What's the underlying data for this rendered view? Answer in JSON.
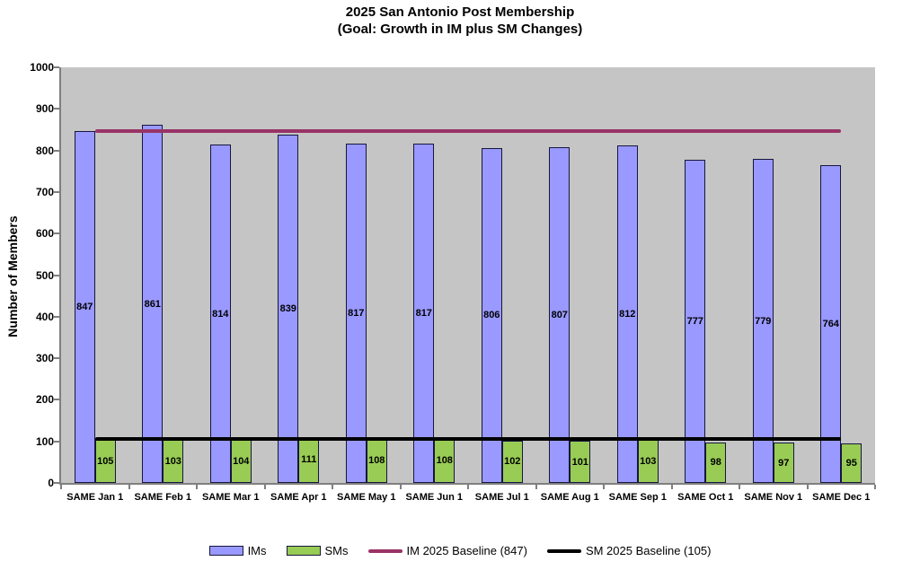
{
  "chart_data": {
    "type": "bar",
    "title": "2025 San Antonio Post Membership",
    "subtitle": "(Goal: Growth in IM plus SM Changes)",
    "ylabel": "Number of Members",
    "xlabel": "",
    "ylim": [
      0,
      1000
    ],
    "ytick_step": 100,
    "grid": false,
    "legend_position": "bottom",
    "plot_bg_color": "#C5C5C5",
    "axis_color": "#7f7f7f",
    "categories": [
      "SAME Jan 1",
      "SAME Feb 1",
      "SAME Mar 1",
      "SAME Apr 1",
      "SAME May 1",
      "SAME Jun 1",
      "SAME Jul 1",
      "SAME Aug 1",
      "SAME Sep 1",
      "SAME Oct 1",
      "SAME Nov 1",
      "SAME Dec 1"
    ],
    "series": [
      {
        "name": "IMs",
        "color": "#9999FF",
        "border_color": "#16163E",
        "values": [
          847,
          861,
          814,
          839,
          817,
          817,
          806,
          807,
          812,
          777,
          779,
          764
        ]
      },
      {
        "name": "SMs",
        "color": "#99CC55",
        "border_color": "#16163E",
        "values": [
          105,
          103,
          104,
          111,
          108,
          108,
          102,
          101,
          103,
          98,
          97,
          95
        ]
      }
    ],
    "baselines": [
      {
        "name": "IM 2025 Baseline (847)",
        "value": 847,
        "color": "#993366"
      },
      {
        "name": "SM 2025 Baseline (105)",
        "value": 105,
        "color": "#000000"
      }
    ]
  }
}
